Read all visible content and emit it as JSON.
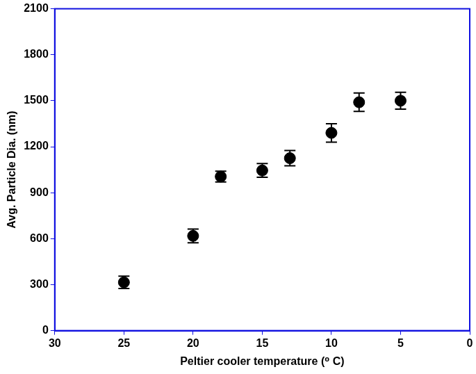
{
  "chart_data": {
    "type": "scatter",
    "x_label": "Peltier cooler temperature (⁰ C)",
    "y_label": "Avg. Particle Dia. (nm)",
    "x": [
      25,
      20,
      18,
      15,
      13,
      10,
      8,
      5
    ],
    "values": [
      315,
      618,
      1005,
      1045,
      1125,
      1290,
      1490,
      1500
    ],
    "errors": [
      40,
      45,
      35,
      45,
      50,
      60,
      60,
      55
    ],
    "color": "#000000",
    "marker": "circle",
    "xlim": [
      30,
      0
    ],
    "xticks": [
      30,
      25,
      20,
      15,
      10,
      5,
      0
    ],
    "ylim": [
      0,
      2100
    ],
    "yticks": [
      0,
      300,
      600,
      900,
      1200,
      1500,
      1800,
      2100
    ],
    "grid": false
  }
}
